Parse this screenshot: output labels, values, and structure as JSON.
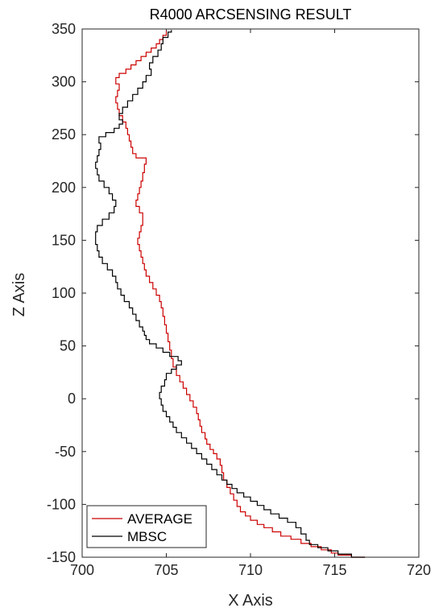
{
  "chart_data": {
    "type": "line",
    "title": "R4000 ARCSENSING RESULT",
    "xlabel": "X Axis",
    "ylabel": "Z Axis",
    "xlim": [
      700,
      720
    ],
    "ylim": [
      -150,
      350
    ],
    "xticks": [
      700,
      705,
      710,
      715,
      720
    ],
    "yticks": [
      -150,
      -100,
      -50,
      0,
      50,
      100,
      150,
      200,
      250,
      300,
      350
    ],
    "xtick_labels": [
      "700",
      "705",
      "710",
      "715",
      "720"
    ],
    "ytick_labels": [
      "-150",
      "-100",
      "-50",
      "0",
      "50",
      "100",
      "150",
      "200",
      "250",
      "300",
      "350"
    ],
    "grid": false,
    "legend_position": "bottom-left",
    "series": [
      {
        "name": "AVERAGE",
        "color": "#cc0000",
        "points": [
          [
            716.8,
            -150
          ],
          [
            716.0,
            -148
          ],
          [
            715.2,
            -146
          ],
          [
            714.8,
            -143
          ],
          [
            714.2,
            -140
          ],
          [
            713.6,
            -137
          ],
          [
            713.0,
            -133
          ],
          [
            712.4,
            -130
          ],
          [
            711.8,
            -126
          ],
          [
            711.3,
            -122
          ],
          [
            710.8,
            -119
          ],
          [
            710.4,
            -115
          ],
          [
            710.0,
            -111
          ],
          [
            709.7,
            -107
          ],
          [
            709.4,
            -102
          ],
          [
            709.2,
            -96
          ],
          [
            709.0,
            -90
          ],
          [
            708.8,
            -84
          ],
          [
            708.6,
            -77
          ],
          [
            708.4,
            -70
          ],
          [
            708.3,
            -63
          ],
          [
            708.2,
            -57
          ],
          [
            708.0,
            -52
          ],
          [
            707.8,
            -48
          ],
          [
            707.6,
            -43
          ],
          [
            707.4,
            -38
          ],
          [
            707.3,
            -32
          ],
          [
            707.1,
            -26
          ],
          [
            707.0,
            -20
          ],
          [
            706.9,
            -14
          ],
          [
            706.8,
            -8
          ],
          [
            706.6,
            -2
          ],
          [
            706.4,
            4
          ],
          [
            706.2,
            10
          ],
          [
            706.0,
            16
          ],
          [
            705.8,
            22
          ],
          [
            705.6,
            30
          ],
          [
            705.4,
            38
          ],
          [
            705.3,
            46
          ],
          [
            705.2,
            54
          ],
          [
            705.1,
            62
          ],
          [
            705.0,
            70
          ],
          [
            704.9,
            78
          ],
          [
            704.8,
            86
          ],
          [
            704.7,
            92
          ],
          [
            704.6,
            98
          ],
          [
            704.4,
            104
          ],
          [
            704.2,
            110
          ],
          [
            704.0,
            116
          ],
          [
            703.8,
            122
          ],
          [
            703.7,
            128
          ],
          [
            703.6,
            134
          ],
          [
            703.5,
            140
          ],
          [
            703.4,
            146
          ],
          [
            703.3,
            152
          ],
          [
            703.4,
            158
          ],
          [
            703.5,
            164
          ],
          [
            703.6,
            170
          ],
          [
            703.6,
            176
          ],
          [
            703.4,
            182
          ],
          [
            703.2,
            188
          ],
          [
            703.3,
            194
          ],
          [
            703.4,
            200
          ],
          [
            703.5,
            206
          ],
          [
            703.6,
            214
          ],
          [
            703.7,
            222
          ],
          [
            703.8,
            228
          ],
          [
            703.2,
            232
          ],
          [
            703.0,
            238
          ],
          [
            702.9,
            244
          ],
          [
            702.8,
            250
          ],
          [
            702.7,
            256
          ],
          [
            702.6,
            262
          ],
          [
            702.4,
            268
          ],
          [
            702.2,
            274
          ],
          [
            702.1,
            280
          ],
          [
            702.0,
            286
          ],
          [
            702.1,
            292
          ],
          [
            702.2,
            298
          ],
          [
            702.0,
            304
          ],
          [
            702.2,
            308
          ],
          [
            702.6,
            312
          ],
          [
            702.9,
            316
          ],
          [
            703.2,
            320
          ],
          [
            703.5,
            324
          ],
          [
            703.8,
            328
          ],
          [
            704.1,
            332
          ],
          [
            704.4,
            336
          ],
          [
            704.6,
            340
          ],
          [
            704.8,
            344
          ],
          [
            705.0,
            348
          ]
        ]
      },
      {
        "name": "MBSC",
        "color": "#000000",
        "points": [
          [
            716.8,
            -150
          ],
          [
            716.0,
            -147
          ],
          [
            715.2,
            -144
          ],
          [
            714.6,
            -141
          ],
          [
            714.0,
            -138
          ],
          [
            713.5,
            -134
          ],
          [
            713.3,
            -128
          ],
          [
            713.0,
            -122
          ],
          [
            712.7,
            -117
          ],
          [
            712.2,
            -113
          ],
          [
            711.7,
            -109
          ],
          [
            711.2,
            -105
          ],
          [
            710.8,
            -101
          ],
          [
            710.4,
            -97
          ],
          [
            710.0,
            -93
          ],
          [
            709.6,
            -89
          ],
          [
            709.2,
            -85
          ],
          [
            708.9,
            -81
          ],
          [
            708.6,
            -77
          ],
          [
            708.3,
            -72
          ],
          [
            708.0,
            -67
          ],
          [
            707.7,
            -62
          ],
          [
            707.4,
            -57
          ],
          [
            707.1,
            -52
          ],
          [
            706.8,
            -47
          ],
          [
            706.5,
            -42
          ],
          [
            706.2,
            -37
          ],
          [
            705.9,
            -32
          ],
          [
            705.6,
            -27
          ],
          [
            705.4,
            -22
          ],
          [
            705.2,
            -17
          ],
          [
            705.0,
            -12
          ],
          [
            704.8,
            -6
          ],
          [
            704.7,
            0
          ],
          [
            704.6,
            6
          ],
          [
            704.7,
            12
          ],
          [
            704.9,
            18
          ],
          [
            705.0,
            24
          ],
          [
            705.3,
            28
          ],
          [
            705.6,
            32
          ],
          [
            705.9,
            36
          ],
          [
            705.7,
            40
          ],
          [
            705.2,
            44
          ],
          [
            704.8,
            48
          ],
          [
            704.4,
            52
          ],
          [
            704.0,
            56
          ],
          [
            703.8,
            60
          ],
          [
            703.7,
            64
          ],
          [
            703.6,
            68
          ],
          [
            703.4,
            74
          ],
          [
            703.2,
            80
          ],
          [
            703.0,
            86
          ],
          [
            702.8,
            92
          ],
          [
            702.5,
            98
          ],
          [
            702.3,
            104
          ],
          [
            702.1,
            110
          ],
          [
            702.0,
            116
          ],
          [
            701.8,
            122
          ],
          [
            701.5,
            128
          ],
          [
            701.2,
            134
          ],
          [
            701.0,
            140
          ],
          [
            700.9,
            146
          ],
          [
            700.8,
            152
          ],
          [
            700.8,
            158
          ],
          [
            700.9,
            164
          ],
          [
            701.2,
            170
          ],
          [
            701.6,
            176
          ],
          [
            701.9,
            182
          ],
          [
            702.0,
            188
          ],
          [
            701.8,
            194
          ],
          [
            701.6,
            200
          ],
          [
            701.3,
            206
          ],
          [
            701.0,
            212
          ],
          [
            700.9,
            218
          ],
          [
            700.8,
            224
          ],
          [
            700.9,
            230
          ],
          [
            701.0,
            236
          ],
          [
            701.1,
            242
          ],
          [
            701.0,
            248
          ],
          [
            701.4,
            252
          ],
          [
            701.9,
            256
          ],
          [
            702.2,
            260
          ],
          [
            702.4,
            264
          ],
          [
            702.2,
            270
          ],
          [
            702.4,
            276
          ],
          [
            702.7,
            282
          ],
          [
            703.0,
            288
          ],
          [
            703.3,
            294
          ],
          [
            703.6,
            300
          ],
          [
            703.8,
            306
          ],
          [
            704.1,
            312
          ],
          [
            704.0,
            318
          ],
          [
            704.2,
            324
          ],
          [
            704.5,
            330
          ],
          [
            704.7,
            336
          ],
          [
            704.8,
            342
          ],
          [
            705.1,
            347
          ],
          [
            705.3,
            349
          ]
        ]
      }
    ]
  }
}
